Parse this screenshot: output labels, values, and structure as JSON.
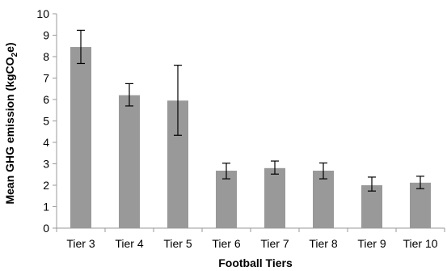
{
  "chart_data": {
    "type": "bar",
    "title": "",
    "xlabel": "Football Tiers",
    "ylabel_parts": {
      "before": "Mean  GHG emission (kgCO",
      "subscript": "2",
      "after": "e)"
    },
    "categories": [
      "Tier 3",
      "Tier 4",
      "Tier 5",
      "Tier 6",
      "Tier 7",
      "Tier 8",
      "Tier 9",
      "Tier 10"
    ],
    "values": [
      8.45,
      6.2,
      5.95,
      2.68,
      2.8,
      2.68,
      2.0,
      2.12
    ],
    "error_low": [
      7.68,
      5.7,
      4.33,
      2.3,
      2.52,
      2.3,
      1.73,
      1.84
    ],
    "error_high": [
      9.23,
      6.74,
      7.6,
      3.03,
      3.13,
      3.04,
      2.38,
      2.42
    ],
    "ylim": [
      0,
      10
    ],
    "yticks": [
      0,
      1,
      2,
      3,
      4,
      5,
      6,
      7,
      8,
      9,
      10
    ],
    "grid": false,
    "legend": "none",
    "bar_color": "#999999",
    "error_bar_color": "#000000",
    "axis_color": "#999999"
  }
}
